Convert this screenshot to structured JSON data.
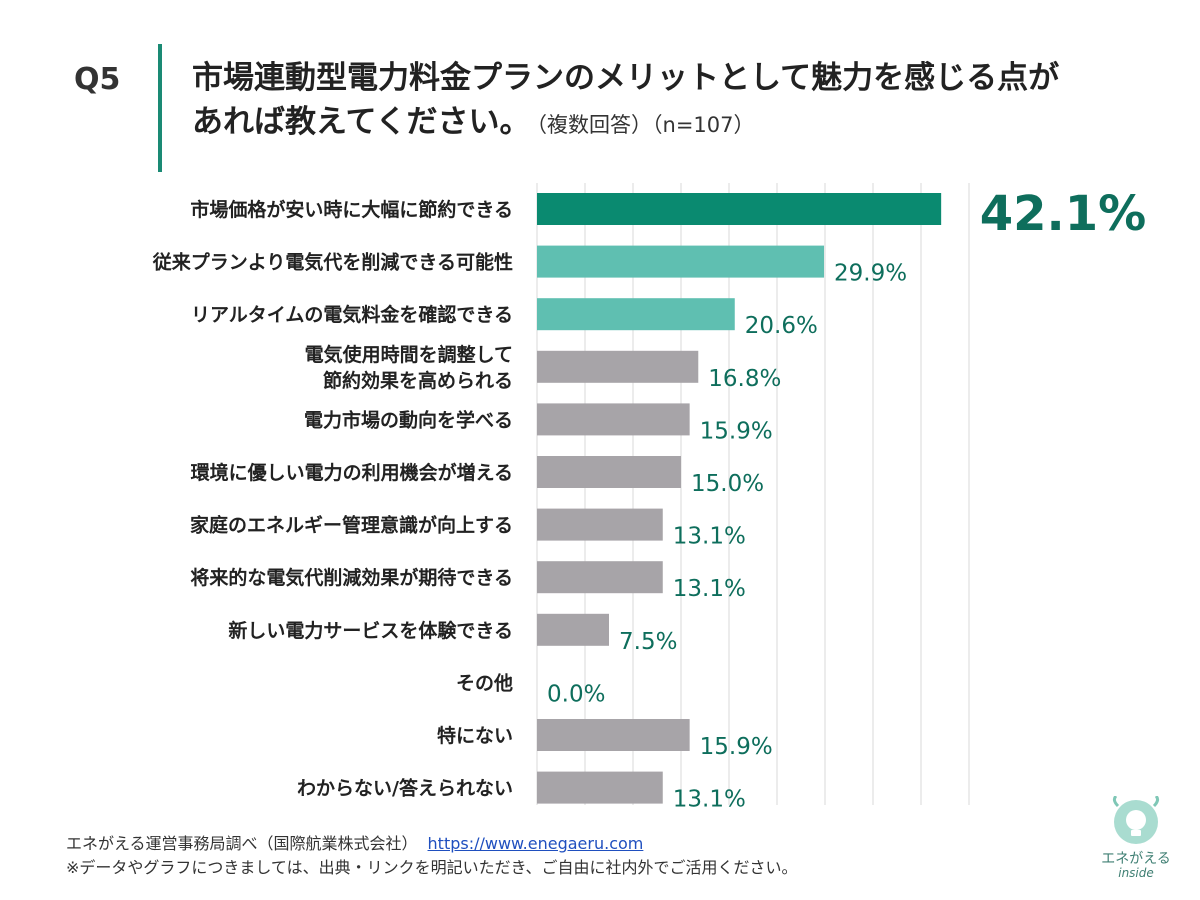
{
  "header": {
    "question_no": "Q5",
    "title_line1": "市場連動型電力料金プランのメリットとして魅力を感じる点が",
    "title_line2": "あれば教えてください。",
    "title_note": "（複数回答）（n=107）"
  },
  "highlight_value": "42.1%",
  "footer": {
    "source": "エネがえる運営事務局調べ（国際航業株式会社）",
    "link": "https://www.enegaeru.com",
    "disclaimer": "※データやグラフにつきましては、出典・リンクを明記いただき、ご自由に社内外でご活用ください。"
  },
  "logo": {
    "text": "エネがえる",
    "sub": "inside"
  },
  "colors": {
    "top": "#0a8a70",
    "second": "#5fbfb1",
    "other": "#a7a4a8",
    "value_text": "#0e6e5c",
    "grid": "#d8d8d8"
  },
  "chart_data": {
    "type": "bar",
    "orientation": "horizontal",
    "xlim": [
      0,
      45
    ],
    "grid": true,
    "categories": [
      [
        "市場価格が安い時に大幅に節約できる"
      ],
      [
        "従来プランより電気代を削減できる可能性"
      ],
      [
        "リアルタイムの電気料金を確認できる"
      ],
      [
        "電気使用時間を調整して",
        "節約効果を高められる"
      ],
      [
        "電力市場の動向を学べる"
      ],
      [
        "環境に優しい電力の利用機会が増える"
      ],
      [
        "家庭のエネルギー管理意識が向上する"
      ],
      [
        "将来的な電気代削減効果が期待できる"
      ],
      [
        "新しい電力サービスを体験できる"
      ],
      [
        "その他"
      ],
      [
        "特にない"
      ],
      [
        "わからない/答えられない"
      ]
    ],
    "values": [
      42.1,
      29.9,
      20.6,
      16.8,
      15.9,
      15.0,
      13.1,
      13.1,
      7.5,
      0.0,
      15.9,
      13.1
    ],
    "labels": [
      "",
      "29.9%",
      "20.6%",
      "16.8%",
      "15.9%",
      "15.0%",
      "13.1%",
      "13.1%",
      "7.5%",
      "0.0%",
      "15.9%",
      "13.1%"
    ],
    "color_groups": [
      "top",
      "second",
      "second",
      "other",
      "other",
      "other",
      "other",
      "other",
      "other",
      "other",
      "other",
      "other"
    ]
  }
}
